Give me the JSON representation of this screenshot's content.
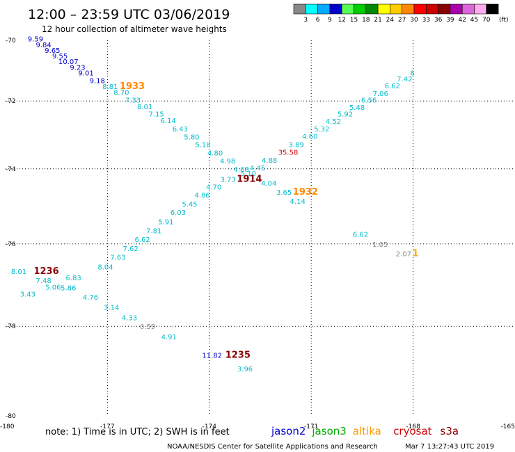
{
  "header": {
    "title": "12:00 – 23:59 UTC 03/06/2019",
    "subtitle": "12 hour collection of altimeter wave heights"
  },
  "legend": {
    "unit": "(ft)",
    "bins": [
      {
        "label": "3",
        "color": "#888888"
      },
      {
        "label": "6",
        "color": "#00ffff"
      },
      {
        "label": "9",
        "color": "#00aaff"
      },
      {
        "label": "12",
        "color": "#0000cc"
      },
      {
        "label": "15",
        "color": "#55ff55"
      },
      {
        "label": "18",
        "color": "#00cc00"
      },
      {
        "label": "21",
        "color": "#008800"
      },
      {
        "label": "24",
        "color": "#ffff00"
      },
      {
        "label": "27",
        "color": "#ffcc00"
      },
      {
        "label": "30",
        "color": "#ff8800"
      },
      {
        "label": "33",
        "color": "#ff0000"
      },
      {
        "label": "36",
        "color": "#cc0000"
      },
      {
        "label": "39",
        "color": "#880000"
      },
      {
        "label": "42",
        "color": "#aa00aa"
      },
      {
        "label": "45",
        "color": "#dd66dd"
      },
      {
        "label": "70",
        "color": "#ffaaee"
      },
      {
        "label": "",
        "color": "#000000"
      }
    ]
  },
  "map": {
    "lat_labels": [
      "-70",
      "-72",
      "-74",
      "-76",
      "-78",
      "-80"
    ],
    "lon_labels": [
      "-180",
      "-177",
      "-174",
      "-171",
      "-168",
      "-165"
    ],
    "wave_labels": [
      {
        "text": "9.59",
        "lon": -179.12,
        "lat": -70.04,
        "color": "#0000cc"
      },
      {
        "text": "9.84",
        "lon": -178.88,
        "lat": -70.24,
        "color": "#0000cc"
      },
      {
        "text": "9.65",
        "lon": -178.62,
        "lat": -70.43,
        "color": "#0000cc"
      },
      {
        "text": "9.55",
        "lon": -178.4,
        "lat": -70.62,
        "color": "#0000cc"
      },
      {
        "text": "10.07",
        "lon": -178.15,
        "lat": -70.81,
        "color": "#0000cc"
      },
      {
        "text": "9.23",
        "lon": -177.88,
        "lat": -71.0,
        "color": "#0000cc"
      },
      {
        "text": "9.01",
        "lon": -177.63,
        "lat": -71.19,
        "color": "#0000cc"
      },
      {
        "text": "9.18",
        "lon": -177.3,
        "lat": -71.43,
        "color": "#0000cc"
      },
      {
        "text": "8.81",
        "lon": -176.92,
        "lat": -71.62,
        "color": "#00bbcc"
      },
      {
        "text": "1933",
        "lon": -176.27,
        "lat": -71.62,
        "color": "#ff8800",
        "big": true
      },
      {
        "text": "8.70",
        "lon": -176.59,
        "lat": -71.81,
        "color": "#00bbcc"
      },
      {
        "text": "7.33",
        "lon": -176.25,
        "lat": -72.05,
        "color": "#00bbcc"
      },
      {
        "text": "8.01",
        "lon": -175.9,
        "lat": -72.25,
        "color": "#00bbcc"
      },
      {
        "text": "7.15",
        "lon": -175.56,
        "lat": -72.48,
        "color": "#00bbcc"
      },
      {
        "text": "6.14",
        "lon": -175.21,
        "lat": -72.68,
        "color": "#00bbcc"
      },
      {
        "text": "6.43",
        "lon": -174.86,
        "lat": -72.92,
        "color": "#00bbcc"
      },
      {
        "text": "5.80",
        "lon": -174.52,
        "lat": -73.16,
        "color": "#00bbcc"
      },
      {
        "text": "5.18",
        "lon": -174.19,
        "lat": -73.38,
        "color": "#00bbcc"
      },
      {
        "text": "4.80",
        "lon": -173.83,
        "lat": -73.62,
        "color": "#00bbcc"
      },
      {
        "text": "4.98",
        "lon": -173.46,
        "lat": -73.85,
        "color": "#00bbcc"
      },
      {
        "text": "4.68",
        "lon": -173.06,
        "lat": -74.08,
        "color": "#00bbcc"
      },
      {
        "text": "5.10",
        "lon": -172.85,
        "lat": -74.2,
        "color": "#00bbcc"
      },
      {
        "text": "4.45",
        "lon": -172.58,
        "lat": -74.04,
        "color": "#00bbcc"
      },
      {
        "text": "4.88",
        "lon": -172.23,
        "lat": -73.83,
        "color": "#00bbcc"
      },
      {
        "text": "35.58",
        "lon": -171.68,
        "lat": -73.6,
        "color": "#cc0000"
      },
      {
        "text": "3.89",
        "lon": -171.44,
        "lat": -73.38,
        "color": "#00bbcc"
      },
      {
        "text": "4.60",
        "lon": -171.04,
        "lat": -73.14,
        "color": "#00bbcc"
      },
      {
        "text": "5.32",
        "lon": -170.69,
        "lat": -72.92,
        "color": "#00bbcc"
      },
      {
        "text": "4.52",
        "lon": -170.35,
        "lat": -72.7,
        "color": "#00bbcc"
      },
      {
        "text": "5.92",
        "lon": -170.0,
        "lat": -72.48,
        "color": "#00bbcc"
      },
      {
        "text": "5.48",
        "lon": -169.65,
        "lat": -72.27,
        "color": "#00bbcc"
      },
      {
        "text": "6.56",
        "lon": -169.3,
        "lat": -72.05,
        "color": "#00bbcc"
      },
      {
        "text": "7.06",
        "lon": -168.96,
        "lat": -71.84,
        "color": "#00bbcc"
      },
      {
        "text": "6.62",
        "lon": -168.61,
        "lat": -71.6,
        "color": "#00bbcc"
      },
      {
        "text": "7.42",
        "lon": -168.25,
        "lat": -71.38,
        "color": "#00bbcc"
      },
      {
        "text": "8",
        "lon": -168.02,
        "lat": -71.19,
        "color": "#00bbcc"
      },
      {
        "text": "3.73",
        "lon": -173.45,
        "lat": -74.36,
        "color": "#00bbcc"
      },
      {
        "text": "1914",
        "lon": -172.82,
        "lat": -74.36,
        "color": "#880000",
        "big": true
      },
      {
        "text": "4.04",
        "lon": -172.25,
        "lat": -74.47,
        "color": "#00bbcc"
      },
      {
        "text": "3.65",
        "lon": -171.8,
        "lat": -74.71,
        "color": "#00bbcc"
      },
      {
        "text": "1932",
        "lon": -171.17,
        "lat": -74.71,
        "color": "#ff8800",
        "big": true
      },
      {
        "text": "4.14",
        "lon": -171.4,
        "lat": -74.95,
        "color": "#00bbcc"
      },
      {
        "text": "4.70",
        "lon": -173.87,
        "lat": -74.57,
        "color": "#00bbcc"
      },
      {
        "text": "4.86",
        "lon": -174.21,
        "lat": -74.79,
        "color": "#00bbcc"
      },
      {
        "text": "5.45",
        "lon": -174.58,
        "lat": -75.03,
        "color": "#00bbcc"
      },
      {
        "text": "6.03",
        "lon": -174.92,
        "lat": -75.25,
        "color": "#00bbcc"
      },
      {
        "text": "5.91",
        "lon": -175.28,
        "lat": -75.49,
        "color": "#00bbcc"
      },
      {
        "text": "7.81",
        "lon": -175.63,
        "lat": -75.73,
        "color": "#00bbcc"
      },
      {
        "text": "6.62",
        "lon": -175.97,
        "lat": -75.95,
        "color": "#00bbcc"
      },
      {
        "text": "7.62",
        "lon": -176.32,
        "lat": -76.18,
        "color": "#00bbcc"
      },
      {
        "text": "7.63",
        "lon": -176.69,
        "lat": -76.4,
        "color": "#00bbcc"
      },
      {
        "text": "8.04",
        "lon": -177.06,
        "lat": -76.64,
        "color": "#00bbcc"
      },
      {
        "text": "8.01",
        "lon": -179.61,
        "lat": -76.75,
        "color": "#00bbcc"
      },
      {
        "text": "1236",
        "lon": -178.8,
        "lat": -76.75,
        "color": "#880000",
        "big": true
      },
      {
        "text": "7.48",
        "lon": -178.88,
        "lat": -76.97,
        "color": "#00bbcc"
      },
      {
        "text": "6.83",
        "lon": -178.0,
        "lat": -76.9,
        "color": "#00bbcc"
      },
      {
        "text": "5.06",
        "lon": -178.6,
        "lat": -77.13,
        "color": "#00bbcc"
      },
      {
        "text": "5.86",
        "lon": -178.15,
        "lat": -77.15,
        "color": "#00bbcc"
      },
      {
        "text": "3.43",
        "lon": -179.35,
        "lat": -77.3,
        "color": "#00bbcc"
      },
      {
        "text": "4.76",
        "lon": -177.5,
        "lat": -77.37,
        "color": "#00bbcc"
      },
      {
        "text": "3.14",
        "lon": -176.88,
        "lat": -77.61,
        "color": "#00bbcc"
      },
      {
        "text": "4.33",
        "lon": -176.35,
        "lat": -77.86,
        "color": "#00bbcc"
      },
      {
        "text": "0.59",
        "lon": -175.82,
        "lat": -78.06,
        "color": "#888888"
      },
      {
        "text": "4.91",
        "lon": -175.19,
        "lat": -78.3,
        "color": "#00bbcc"
      },
      {
        "text": "11.82",
        "lon": -173.92,
        "lat": -78.72,
        "color": "#0000cc"
      },
      {
        "text": "1235",
        "lon": -173.16,
        "lat": -78.72,
        "color": "#880000",
        "big": true
      },
      {
        "text": "3.96",
        "lon": -172.95,
        "lat": -79.03,
        "color": "#00bbcc"
      },
      {
        "text": "6.62",
        "lon": -169.55,
        "lat": -75.82,
        "color": "#00bbcc"
      },
      {
        "text": "1.05",
        "lon": -168.97,
        "lat": -76.07,
        "color": "#888888"
      },
      {
        "text": "2.07",
        "lon": -168.28,
        "lat": -76.31,
        "color": "#888888"
      },
      {
        "text": "1",
        "lon": -167.93,
        "lat": -76.31,
        "color": "#ffaa00",
        "big": true
      }
    ]
  },
  "footer": {
    "note": "note:  1) Time is in UTC;  2) SWH is in feet",
    "satellites": [
      {
        "name": "jason2",
        "color": "#0000cc"
      },
      {
        "name": "jason3",
        "color": "#00aa00"
      },
      {
        "name": "altika",
        "color": "#ff9900"
      },
      {
        "name": "cryosat",
        "color": "#cc0000"
      },
      {
        "name": "s3a",
        "color": "#880000"
      }
    ],
    "credit": "NOAA/NESDIS Center for Satellite Applications and Research",
    "timestamp": "Mar  7 13:27:43 UTC 2019"
  }
}
